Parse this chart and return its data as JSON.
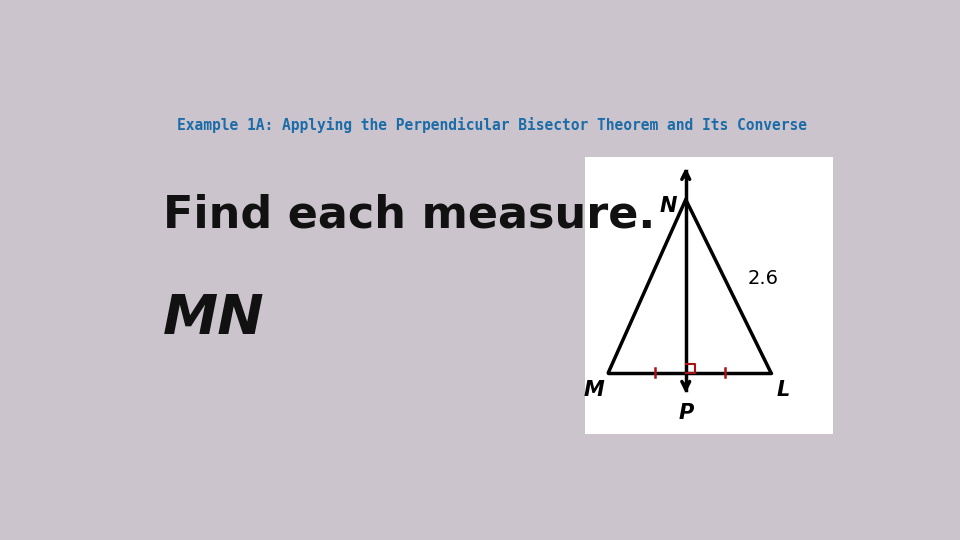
{
  "title": "Example 1A: Applying the Perpendicular Bisector Theorem and Its Converse",
  "title_color": "#1b6ca8",
  "title_fontsize": 10.5,
  "main_text": "Find each measure.",
  "main_text_fontsize": 32,
  "sub_text": "MN",
  "sub_text_fontsize": 40,
  "background_color": "#ccc4cc",
  "diagram_bg": "#ffffff",
  "line_color": "#000000",
  "tick_color": "#aa1111",
  "right_angle_color": "#aa1111",
  "label_N": "N",
  "label_M": "M",
  "label_L": "L",
  "label_P": "P",
  "value_26": "2.6"
}
